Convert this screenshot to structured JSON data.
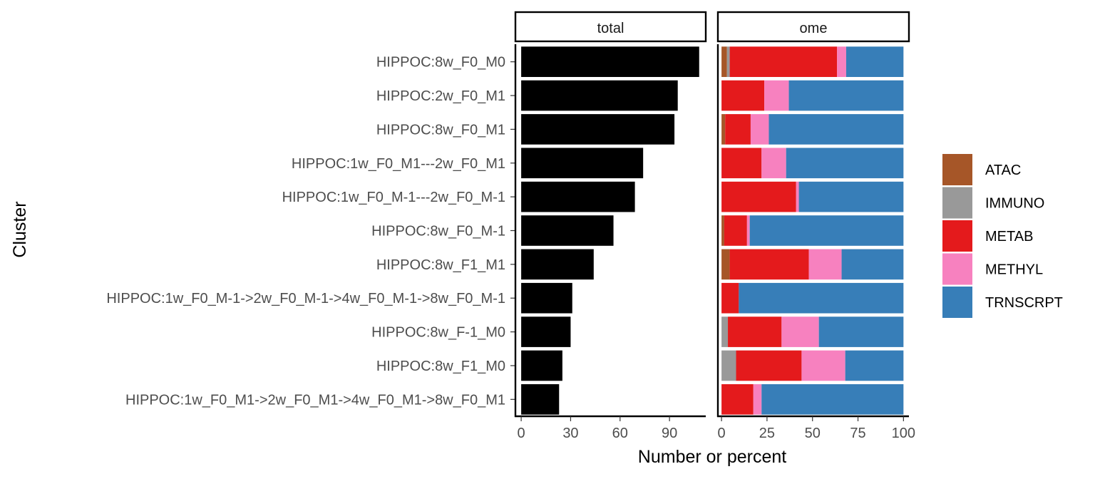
{
  "chart_data": {
    "type": "bar",
    "orientation": "horizontal",
    "xlabel": "Number or percent",
    "ylabel": "Cluster",
    "categories": [
      "HIPPOC:8w_F0_M0",
      "HIPPOC:2w_F0_M1",
      "HIPPOC:8w_F0_M1",
      "HIPPOC:1w_F0_M1---2w_F0_M1",
      "HIPPOC:1w_F0_M-1---2w_F0_M-1",
      "HIPPOC:8w_F0_M-1",
      "HIPPOC:8w_F1_M1",
      "HIPPOC:1w_F0_M-1->2w_F0_M-1->4w_F0_M-1->8w_F0_M-1",
      "HIPPOC:8w_F-1_M0",
      "HIPPOC:8w_F1_M0",
      "HIPPOC:1w_F0_M1->2w_F0_M1->4w_F0_M1->8w_F0_M1"
    ],
    "panels": [
      {
        "strip": "total",
        "xlim": [
          -3.5,
          112
        ],
        "xticks": [
          0,
          30,
          60,
          90
        ],
        "tick_labels": [
          "0",
          "30",
          "60",
          "90"
        ],
        "values": [
          108,
          95,
          93,
          74,
          69,
          56,
          44,
          31,
          30,
          25,
          23
        ],
        "color": "#000000"
      },
      {
        "strip": "ome",
        "stacked": true,
        "xlim": [
          -2,
          103
        ],
        "xticks": [
          0,
          25,
          50,
          75,
          100
        ],
        "tick_labels": [
          "0",
          "25",
          "50",
          "75",
          "100"
        ],
        "series": [
          {
            "name": "ATAC",
            "color": "#A65628",
            "values": [
              3,
              0,
              2,
              0,
              0,
              1.5,
              4.5,
              0,
              0,
              0,
              0
            ]
          },
          {
            "name": "IMMUNO",
            "color": "#999999",
            "values": [
              1.5,
              0,
              0,
              0,
              0,
              0,
              0,
              0,
              3.5,
              8,
              0
            ]
          },
          {
            "name": "METAB",
            "color": "#E41A1C",
            "values": [
              59,
              23.5,
              14,
              22,
              41,
              12.5,
              43.5,
              9.5,
              29.5,
              36,
              17.5
            ]
          },
          {
            "name": "METHYL",
            "color": "#F781BF",
            "values": [
              5,
              13.5,
              10,
              13.5,
              1.5,
              1.5,
              18,
              0,
              20.5,
              24,
              4.5
            ]
          },
          {
            "name": "TRNSCRPT",
            "color": "#377EB8",
            "values": [
              31.5,
              63,
              74,
              64.5,
              57.5,
              84.5,
              34,
              90.5,
              46.5,
              32,
              78
            ]
          }
        ]
      }
    ],
    "legend": {
      "placement": "right",
      "entries": [
        "ATAC",
        "IMMUNO",
        "METAB",
        "METHYL",
        "TRNSCRPT"
      ]
    },
    "grid": false
  }
}
